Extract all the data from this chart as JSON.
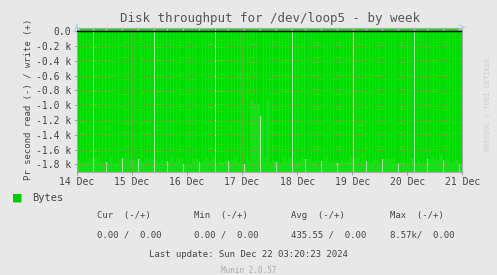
{
  "title": "Disk throughput for /dev/loop5 - by week",
  "ylabel": "Pr second read (-) / write (+)",
  "background_color": "#e8e8e8",
  "plot_bg_color": "#ffffff",
  "grid_color": "#ff6688",
  "line_color": "#00dd00",
  "fill_color": "#00dd00",
  "border_color": "#aaaaaa",
  "ylim": [
    -1900,
    50
  ],
  "ytick_vals": [
    0,
    -200,
    -400,
    -600,
    -800,
    -1000,
    -1200,
    -1400,
    -1600,
    -1800
  ],
  "ytick_labels": [
    "0.0",
    "-0.2 k",
    "-0.4 k",
    "-0.6 k",
    "-0.8 k",
    "-1.0 k",
    "-1.2 k",
    "-1.4 k",
    "-1.6 k",
    "-1.8 k"
  ],
  "xtick_labels": [
    "14 Dec",
    "15 Dec",
    "16 Dec",
    "17 Dec",
    "18 Dec",
    "19 Dec",
    "20 Dec",
    "21 Dec"
  ],
  "legend_label": "Bytes",
  "legend_color": "#00cc00",
  "footer_cur": "Cur  (-/+)",
  "footer_min": "Min  (-/+)",
  "footer_avg": "Avg  (-/+)",
  "footer_max": "Max  (-/+)",
  "footer_cur_val": "0.00 /  0.00",
  "footer_min_val": "0.00 /  0.00",
  "footer_avg_val": "435.55 /  0.00",
  "footer_max_val": "8.57k/  0.00",
  "footer_last": "Last update: Sun Dec 22 03:20:23 2024",
  "footer_munin": "Munin 2.0.57",
  "watermark": "RRDTOOL / TOBI OETIKER",
  "num_spikes": 120,
  "spike_min": -1750,
  "spike_max": -1800
}
